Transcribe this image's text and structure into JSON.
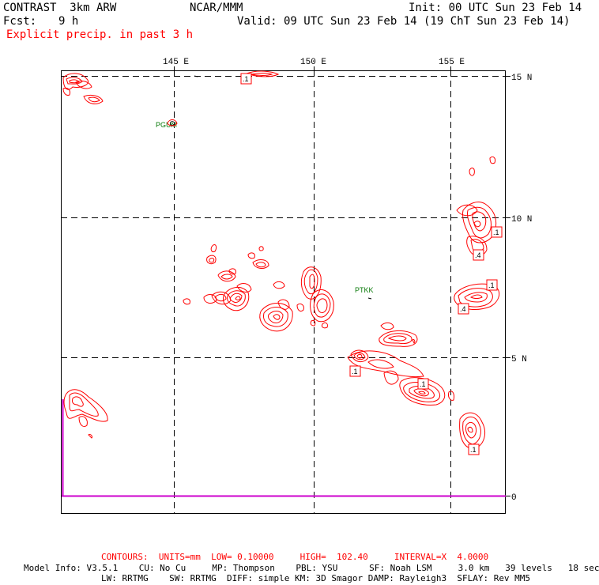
{
  "header": {
    "model": "CONTRAST  3km ARW",
    "org": "NCAR/MMM",
    "init": "Init: 00 UTC Sun 23 Feb 14",
    "fcst_label": "Fcst:",
    "fcst_value": "9 h",
    "valid": "Valid: 09 UTC Sun 23 Feb 14 (19 ChT Sun 23 Feb 14)",
    "field": "Explicit precip. in past 3 h"
  },
  "map": {
    "lon_labels": [
      "145 E",
      "150 E",
      "155 E"
    ],
    "lat_labels": [
      "15 N",
      "10 N",
      "5 N",
      "0"
    ],
    "stations": [
      "PGUM",
      "PTKK"
    ],
    "contour_labels": [
      ".1",
      ".1",
      ".4",
      ".1",
      ".4",
      ".1",
      ".1",
      ".1"
    ],
    "colors": {
      "contour": "#ff0000",
      "grid": "#000000",
      "station": "#0a7a0a",
      "accent": "#cc00cc"
    }
  },
  "footer": {
    "contours": "CONTOURS:  UNITS=mm  LOW= 0.10000     HIGH=  102.40     INTERVAL=X  4.0000",
    "model_info_1": "Model Info: V3.5.1    CU: No Cu     MP: Thompson    PBL: YSU      SF: Noah LSM     3.0 km   39 levels   18 sec",
    "model_info_2": "LW: RRTMG    SW: RRTMG  DIFF: simple KM: 3D Smagor DAMP: Rayleigh3  SFLAY: Rev MM5"
  }
}
